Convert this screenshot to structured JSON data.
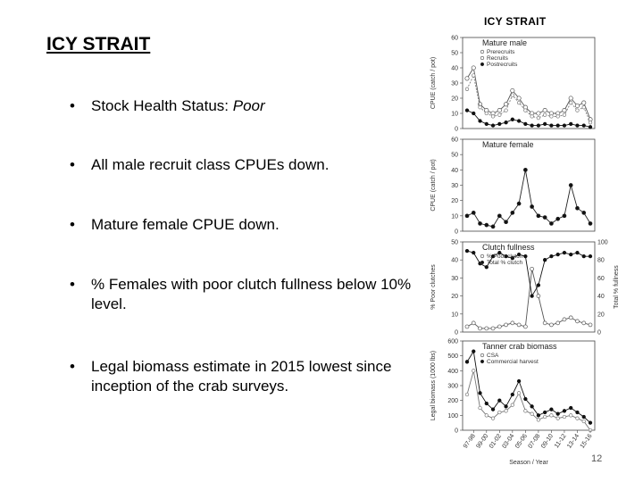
{
  "slide": {
    "title": "ICY STRAIT",
    "bullets": [
      {
        "text": "Stock Health Status: ",
        "emph": "Poor"
      },
      {
        "text": "All male recruit class CPUEs down.",
        "emph": ""
      },
      {
        "text": "Mature female CPUE down.",
        "emph": ""
      },
      {
        "text": "% Females with poor clutch fullness below 10% level.",
        "emph": ""
      },
      {
        "text": "Legal biomass estimate in 2015 lowest since inception of the crab surveys.",
        "emph": ""
      }
    ],
    "page_number": "12",
    "bullet_glyph": "•"
  },
  "figure": {
    "title": "ICY STRAIT",
    "x_axis_title": "Season / Year",
    "x_tick_labels": [
      "97-98",
      "99-00",
      "01-02",
      "03-04",
      "05-06",
      "07-08",
      "09-10",
      "11-12",
      "13-14",
      "15-16"
    ],
    "panels": {
      "mature_male": {
        "title": "Mature male",
        "ylabel": "CPUE (catch / pot)",
        "yticks": [
          "0",
          "10",
          "20",
          "30",
          "40",
          "50",
          "60"
        ],
        "legend": [
          "Prerecruits",
          "Recruits",
          "Postrecruits"
        ]
      },
      "mature_female": {
        "title": "Mature female",
        "ylabel": "CPUE (catch / pot)",
        "yticks": [
          "0",
          "10",
          "20",
          "30",
          "40",
          "50",
          "60"
        ]
      },
      "clutch": {
        "title": "Clutch fullness",
        "ylabel_left": "% Poor clutches",
        "ylabel_right": "Total % fullness",
        "yticks_left": [
          "0",
          "10",
          "20",
          "30",
          "40",
          "50"
        ],
        "yticks_right": [
          "0",
          "20",
          "40",
          "60",
          "80",
          "100"
        ],
        "legend": [
          "% Poor clutch",
          "Total % clutch"
        ]
      },
      "biomass": {
        "title": "Tanner crab biomass",
        "ylabel": "Legal biomass (1000 lbs)",
        "yticks": [
          "0",
          "100",
          "200",
          "300",
          "400",
          "500",
          "600"
        ],
        "legend": [
          "CSA",
          "Commercial harvest"
        ]
      }
    }
  },
  "chart_data": [
    {
      "type": "line",
      "title": "Mature male",
      "ylabel": "CPUE (catch / pot)",
      "ylim": [
        0,
        60
      ],
      "x": [
        1,
        2,
        3,
        4,
        5,
        6,
        7,
        8,
        9,
        10,
        11,
        12,
        13,
        14,
        15,
        16,
        17,
        18,
        19,
        20
      ],
      "series": [
        {
          "name": "Prerecruits",
          "values": [
            33,
            40,
            16,
            12,
            10,
            12,
            16,
            25,
            20,
            14,
            10,
            10,
            12,
            10,
            10,
            12,
            20,
            15,
            17,
            6
          ]
        },
        {
          "name": "Recruits",
          "values": [
            26,
            35,
            14,
            10,
            8,
            9,
            12,
            22,
            17,
            12,
            8,
            7,
            9,
            8,
            8,
            9,
            17,
            12,
            14,
            4
          ]
        },
        {
          "name": "Postrecruits",
          "values": [
            12,
            10,
            5,
            3,
            2,
            3,
            4,
            6,
            5,
            3,
            2,
            2,
            3,
            2,
            2,
            2,
            3,
            2,
            2,
            1
          ]
        }
      ]
    },
    {
      "type": "line",
      "title": "Mature female",
      "ylabel": "CPUE (catch / pot)",
      "ylim": [
        0,
        60
      ],
      "x": [
        1,
        2,
        3,
        4,
        5,
        6,
        7,
        8,
        9,
        10,
        11,
        12,
        13,
        14,
        15,
        16,
        17,
        18,
        19,
        20
      ],
      "series": [
        {
          "name": "",
          "values": [
            10,
            12,
            5,
            4,
            3,
            10,
            6,
            12,
            18,
            40,
            16,
            10,
            9,
            5,
            8,
            10,
            30,
            15,
            12,
            5
          ]
        }
      ]
    },
    {
      "type": "line",
      "title": "Clutch fullness",
      "ylim": [
        0,
        50
      ],
      "x": [
        1,
        2,
        3,
        4,
        5,
        6,
        7,
        8,
        9,
        10,
        11,
        12,
        13,
        14,
        15,
        16,
        17,
        18,
        19,
        20
      ],
      "series": [
        {
          "name": "% Poor clutch",
          "values": [
            3,
            5,
            2,
            2,
            2,
            3,
            4,
            5,
            4,
            3,
            35,
            20,
            5,
            4,
            5,
            7,
            8,
            6,
            5,
            4
          ]
        },
        {
          "name": "Total % clutch",
          "values": [
            45,
            44,
            38,
            36,
            42,
            44,
            42,
            41,
            43,
            42,
            20,
            26,
            40,
            42,
            43,
            44,
            43,
            44,
            42,
            42
          ]
        }
      ]
    },
    {
      "type": "line",
      "title": "Tanner crab biomass",
      "ylabel": "Legal biomass (1000 lbs)",
      "ylim": [
        0,
        600
      ],
      "x": [
        1,
        2,
        3,
        4,
        5,
        6,
        7,
        8,
        9,
        10,
        11,
        12,
        13,
        14,
        15,
        16,
        17,
        18,
        19,
        20
      ],
      "series": [
        {
          "name": "CSA",
          "values": [
            460,
            530,
            250,
            180,
            140,
            200,
            160,
            240,
            330,
            210,
            160,
            100,
            120,
            140,
            110,
            130,
            150,
            120,
            90,
            50
          ]
        },
        {
          "name": "Commercial harvest",
          "values": [
            240,
            400,
            150,
            100,
            80,
            120,
            130,
            170,
            250,
            130,
            110,
            70,
            90,
            100,
            80,
            90,
            100,
            80,
            60,
            0
          ]
        }
      ]
    }
  ]
}
